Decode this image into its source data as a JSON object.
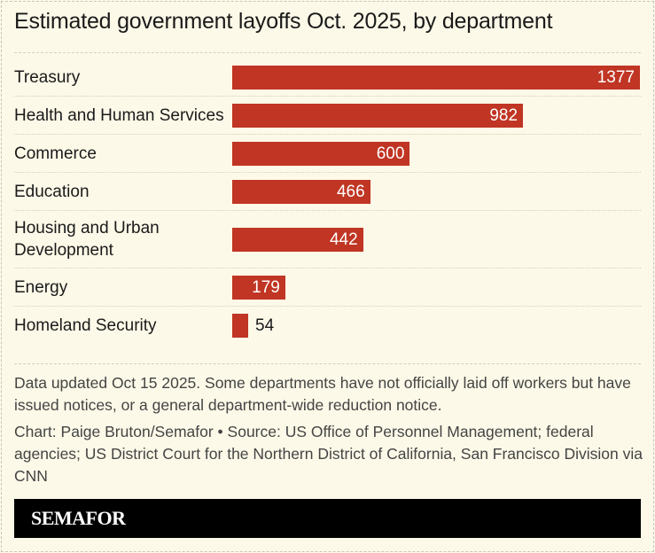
{
  "chart_data": {
    "type": "bar",
    "orientation": "horizontal",
    "title": "Estimated government layoffs Oct. 2025, by department",
    "categories": [
      "Treasury",
      "Health and Human Services",
      "Commerce",
      "Education",
      "Housing and Urban Development",
      "Energy",
      "Homeland Security"
    ],
    "category_lines": [
      [
        "Treasury"
      ],
      [
        "Health and Human Services"
      ],
      [
        "Commerce"
      ],
      [
        "Education"
      ],
      [
        "Housing and Urban",
        "Development"
      ],
      [
        "Energy"
      ],
      [
        "Homeland Security"
      ]
    ],
    "values": [
      1377,
      982,
      600,
      466,
      442,
      179,
      54
    ],
    "value_labels": [
      "1377",
      "982",
      "600",
      "466",
      "442",
      "179",
      "54"
    ],
    "xlim": [
      0,
      1377
    ],
    "grid": false,
    "bar_color": "#c03523"
  },
  "notes": "Data updated Oct 15 2025. Some departments have not officially laid off workers but have issued notices, or a general department-wide reduction notice.",
  "source": "Chart: Paige Bruton/Semafor • Source: US Office of Personnel Management; federal agencies; US District Court for the Northern District of California, San Francisco Division via CNN",
  "logo": "SEMAFOR",
  "colors": {
    "background": "#fdf9e8",
    "bar": "#c03523",
    "footer": "#000000"
  }
}
